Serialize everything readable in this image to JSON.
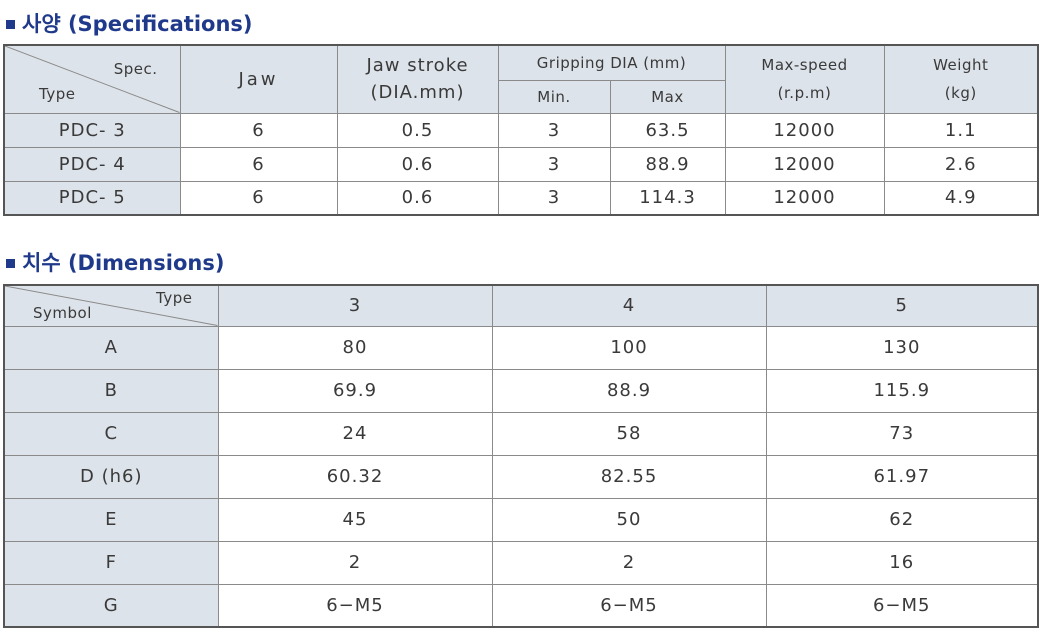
{
  "spec": {
    "title": "사양 (Specifications)",
    "corner": {
      "top": "Spec.",
      "bottom": "Type"
    },
    "headers": {
      "jaw": "Jaw",
      "stroke": [
        "Jaw stroke",
        "(DIA.mm)"
      ],
      "gripping": "Gripping DIA (mm)",
      "min": "Min.",
      "max": "Max",
      "speed": [
        "Max-speed",
        "(r.p.m)"
      ],
      "weight": [
        "Weight",
        "(kg)"
      ]
    },
    "rows": [
      {
        "type": "PDC- 3",
        "jaw": "6",
        "stroke": "0.5",
        "min": "3",
        "max": "63.5",
        "speed": "12000",
        "weight": "1.1"
      },
      {
        "type": "PDC- 4",
        "jaw": "6",
        "stroke": "0.6",
        "min": "3",
        "max": "88.9",
        "speed": "12000",
        "weight": "2.6"
      },
      {
        "type": "PDC- 5",
        "jaw": "6",
        "stroke": "0.6",
        "min": "3",
        "max": "114.3",
        "speed": "12000",
        "weight": "4.9"
      }
    ]
  },
  "dim": {
    "title": "치수 (Dimensions)",
    "corner": {
      "top": "Type",
      "bottom": "Symbol"
    },
    "columns": [
      "3",
      "4",
      "5"
    ],
    "rows": [
      {
        "symbol": "A",
        "values": [
          "80",
          "100",
          "130"
        ]
      },
      {
        "symbol": "B",
        "values": [
          "69.9",
          "88.9",
          "115.9"
        ]
      },
      {
        "symbol": "C",
        "values": [
          "24",
          "58",
          "73"
        ]
      },
      {
        "symbol": "D (h6)",
        "values": [
          "60.32",
          "82.55",
          "61.97"
        ]
      },
      {
        "symbol": "E",
        "values": [
          "45",
          "50",
          "62"
        ]
      },
      {
        "symbol": "F",
        "values": [
          "2",
          "2",
          "16"
        ]
      },
      {
        "symbol": "G",
        "values": [
          "6−M5",
          "6−M5",
          "6−M5"
        ]
      }
    ]
  }
}
